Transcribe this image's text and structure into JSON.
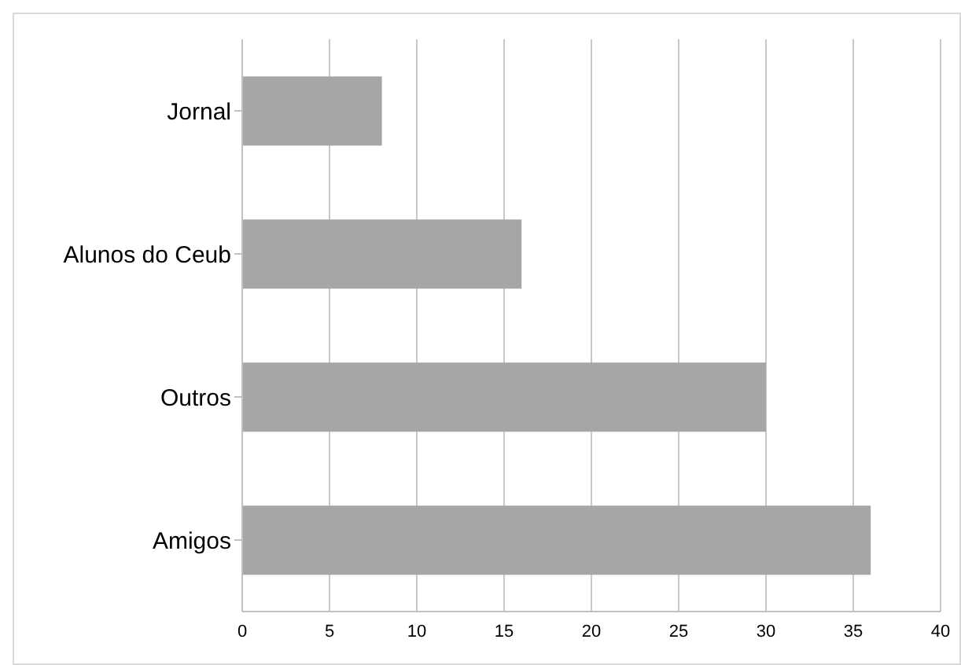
{
  "chart_data": {
    "type": "bar",
    "orientation": "horizontal",
    "categories": [
      "Jornal",
      "Alunos do Ceub",
      "Outros",
      "Amigos"
    ],
    "values": [
      8,
      16,
      30,
      36
    ],
    "color": "#a6a6a6",
    "xlim": [
      0,
      40
    ],
    "xticks": [
      0,
      5,
      10,
      15,
      20,
      25,
      30,
      35,
      40
    ],
    "grid": "x",
    "legend": false
  }
}
